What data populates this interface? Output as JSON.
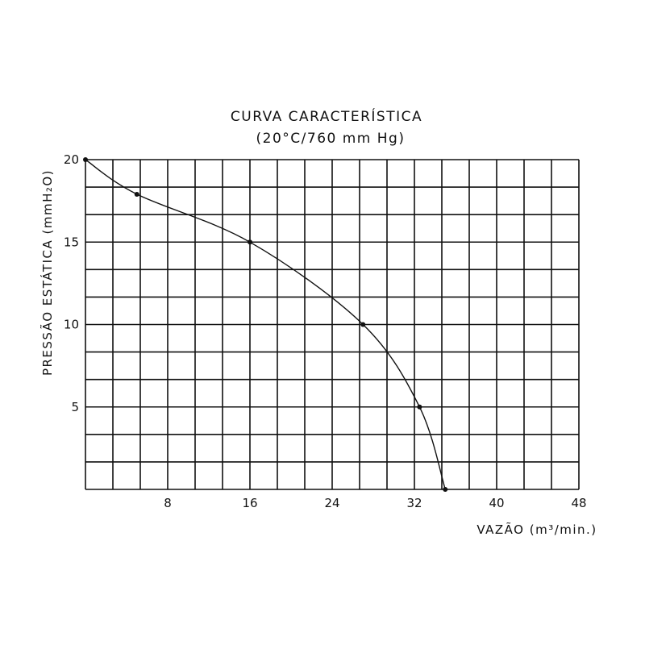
{
  "chart_data": {
    "type": "line",
    "title": "CURVA CARACTERÍSTICA",
    "subtitle": "(20°C/760 mm Hg)",
    "xlabel": "VAZÃO (m³/min.)",
    "ylabel": "PRESSÃO ESTÁTICA (mmH₂O)",
    "xlim": [
      0,
      48
    ],
    "ylim": [
      0,
      20
    ],
    "x_ticks": [
      8,
      16,
      24,
      32,
      40,
      48
    ],
    "y_ticks": [
      5,
      10,
      15,
      20
    ],
    "grid": true,
    "series": [
      {
        "x": [
          0,
          5,
          16,
          27,
          32.5,
          35
        ],
        "y": [
          20,
          17.9,
          15,
          10,
          5,
          0
        ]
      }
    ]
  }
}
